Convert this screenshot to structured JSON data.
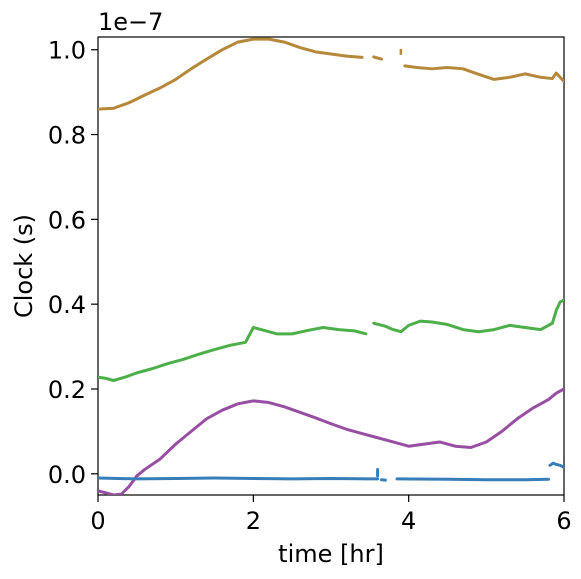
{
  "chart_data": {
    "type": "line",
    "title": "",
    "xlabel": "time [hr]",
    "ylabel": "Clock (s)",
    "y_multiplier": "1e−7",
    "xlim": [
      0,
      6
    ],
    "ylim": [
      -0.05,
      1.03
    ],
    "x_ticks": [
      0,
      2,
      4,
      6
    ],
    "x_tick_labels": [
      "0",
      "2",
      "4",
      "6"
    ],
    "y_ticks": [
      0.0,
      0.2,
      0.4,
      0.6,
      0.8,
      1.0
    ],
    "y_tick_labels": [
      "0.0",
      "0.2",
      "0.4",
      "0.6",
      "0.8",
      "1.0"
    ],
    "grid": false,
    "legend": "none",
    "series": [
      {
        "color": "#b5883a",
        "segments": [
          [
            [
              0.0,
              0.86
            ],
            [
              0.2,
              0.862
            ],
            [
              0.4,
              0.875
            ],
            [
              0.6,
              0.893
            ],
            [
              0.8,
              0.91
            ],
            [
              1.0,
              0.93
            ],
            [
              1.2,
              0.955
            ],
            [
              1.4,
              0.978
            ],
            [
              1.6,
              1.0
            ],
            [
              1.8,
              1.018
            ],
            [
              2.0,
              1.025
            ],
            [
              2.2,
              1.025
            ],
            [
              2.4,
              1.018
            ],
            [
              2.6,
              1.005
            ],
            [
              2.8,
              0.995
            ],
            [
              3.0,
              0.99
            ],
            [
              3.2,
              0.985
            ],
            [
              3.4,
              0.982
            ]
          ],
          [
            [
              3.55,
              0.983
            ],
            [
              3.65,
              0.978
            ]
          ],
          [
            [
              3.9,
              0.995
            ]
          ],
          [
            [
              3.95,
              0.962
            ],
            [
              4.1,
              0.958
            ],
            [
              4.3,
              0.955
            ],
            [
              4.5,
              0.958
            ],
            [
              4.7,
              0.955
            ],
            [
              4.9,
              0.942
            ],
            [
              5.1,
              0.93
            ],
            [
              5.3,
              0.935
            ],
            [
              5.5,
              0.943
            ],
            [
              5.7,
              0.935
            ],
            [
              5.85,
              0.932
            ],
            [
              5.9,
              0.945
            ],
            [
              5.95,
              0.935
            ],
            [
              6.0,
              0.925
            ]
          ]
        ]
      },
      {
        "color": "#4daf4a",
        "segments": [
          [
            [
              0.0,
              0.228
            ],
            [
              0.1,
              0.225
            ],
            [
              0.2,
              0.22
            ],
            [
              0.35,
              0.228
            ],
            [
              0.5,
              0.238
            ],
            [
              0.7,
              0.248
            ],
            [
              0.9,
              0.26
            ],
            [
              1.1,
              0.27
            ],
            [
              1.3,
              0.282
            ],
            [
              1.5,
              0.293
            ],
            [
              1.7,
              0.303
            ],
            [
              1.9,
              0.31
            ],
            [
              2.0,
              0.345
            ],
            [
              2.1,
              0.34
            ],
            [
              2.3,
              0.33
            ],
            [
              2.5,
              0.33
            ],
            [
              2.7,
              0.338
            ],
            [
              2.9,
              0.345
            ],
            [
              3.1,
              0.34
            ],
            [
              3.3,
              0.337
            ],
            [
              3.45,
              0.33
            ]
          ],
          [
            [
              3.55,
              0.355
            ],
            [
              3.7,
              0.348
            ],
            [
              3.8,
              0.34
            ],
            [
              3.9,
              0.335
            ],
            [
              4.0,
              0.35
            ],
            [
              4.15,
              0.36
            ],
            [
              4.3,
              0.358
            ],
            [
              4.5,
              0.352
            ],
            [
              4.7,
              0.34
            ],
            [
              4.9,
              0.335
            ],
            [
              5.1,
              0.34
            ],
            [
              5.3,
              0.35
            ],
            [
              5.5,
              0.345
            ],
            [
              5.7,
              0.34
            ],
            [
              5.85,
              0.355
            ],
            [
              5.9,
              0.385
            ],
            [
              5.95,
              0.405
            ],
            [
              6.0,
              0.41
            ]
          ]
        ]
      },
      {
        "color": "#984ea3",
        "segments": [
          [
            [
              0.0,
              -0.04
            ],
            [
              0.1,
              -0.045
            ],
            [
              0.2,
              -0.05
            ],
            [
              0.3,
              -0.048
            ],
            [
              0.4,
              -0.03
            ],
            [
              0.5,
              -0.005
            ],
            [
              0.6,
              0.01
            ],
            [
              0.8,
              0.035
            ],
            [
              1.0,
              0.07
            ],
            [
              1.2,
              0.1
            ],
            [
              1.4,
              0.13
            ],
            [
              1.6,
              0.15
            ],
            [
              1.8,
              0.165
            ],
            [
              2.0,
              0.172
            ],
            [
              2.2,
              0.168
            ],
            [
              2.4,
              0.158
            ],
            [
              2.6,
              0.145
            ],
            [
              2.8,
              0.132
            ],
            [
              3.0,
              0.118
            ],
            [
              3.2,
              0.105
            ],
            [
              3.4,
              0.095
            ],
            [
              3.6,
              0.085
            ],
            [
              3.8,
              0.075
            ],
            [
              4.0,
              0.065
            ],
            [
              4.2,
              0.07
            ],
            [
              4.4,
              0.075
            ],
            [
              4.6,
              0.065
            ],
            [
              4.8,
              0.062
            ],
            [
              5.0,
              0.075
            ],
            [
              5.2,
              0.1
            ],
            [
              5.4,
              0.13
            ],
            [
              5.6,
              0.155
            ],
            [
              5.8,
              0.175
            ],
            [
              5.9,
              0.19
            ],
            [
              6.0,
              0.2
            ]
          ]
        ]
      },
      {
        "color": "#377eb8",
        "segments": [
          [
            [
              0.0,
              -0.01
            ],
            [
              0.5,
              -0.012
            ],
            [
              1.0,
              -0.011
            ],
            [
              1.5,
              -0.01
            ],
            [
              2.0,
              -0.011
            ],
            [
              2.5,
              -0.012
            ],
            [
              3.0,
              -0.011
            ],
            [
              3.5,
              -0.012
            ],
            [
              3.6,
              -0.012
            ]
          ],
          [
            [
              3.6,
              0.01
            ],
            [
              3.6,
              0.0
            ],
            [
              3.6,
              -0.005
            ]
          ],
          [
            [
              3.65,
              -0.014
            ],
            [
              3.7,
              -0.015
            ]
          ],
          [
            [
              3.85,
              -0.012
            ],
            [
              4.5,
              -0.013
            ],
            [
              5.0,
              -0.014
            ],
            [
              5.5,
              -0.014
            ],
            [
              5.8,
              -0.013
            ]
          ],
          [
            [
              5.82,
              0.02
            ],
            [
              5.86,
              0.025
            ],
            [
              5.9,
              0.022
            ],
            [
              5.95,
              0.02
            ],
            [
              6.0,
              0.015
            ]
          ]
        ]
      }
    ]
  }
}
